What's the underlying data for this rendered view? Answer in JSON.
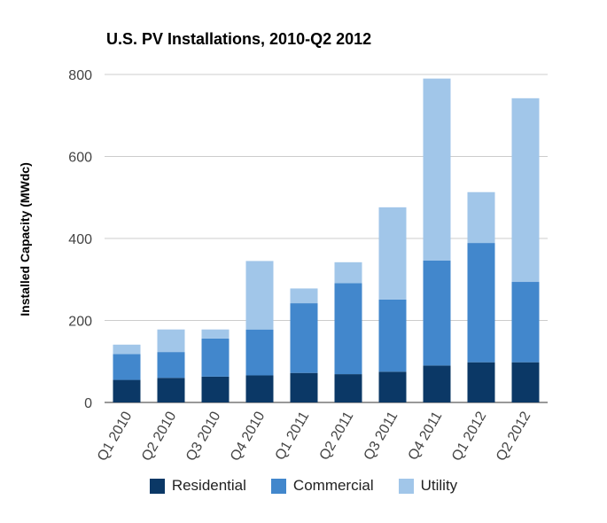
{
  "chart_data": {
    "type": "bar",
    "stacked": true,
    "title": "U.S. PV Installations, 2010-Q2 2012",
    "ylabel": "Installed Capacity (MWdc)",
    "xlabel": "",
    "ylim": [
      0,
      800
    ],
    "yticks": [
      0,
      200,
      400,
      600,
      800
    ],
    "grid": true,
    "legend_position": "bottom",
    "categories": [
      "Q1 2010",
      "Q2 2010",
      "Q3 2010",
      "Q4 2010",
      "Q1 2011",
      "Q2 2011",
      "Q3 2011",
      "Q4 2011",
      "Q1 2012",
      "Q2 2012"
    ],
    "series": [
      {
        "name": "Residential",
        "color": "#0b3866",
        "values": [
          55,
          60,
          63,
          66,
          72,
          69,
          75,
          90,
          98,
          98
        ]
      },
      {
        "name": "Commercial",
        "color": "#4287cc",
        "values": [
          63,
          63,
          93,
          112,
          170,
          222,
          176,
          256,
          291,
          196
        ]
      },
      {
        "name": "Utility",
        "color": "#a1c6e9",
        "values": [
          23,
          55,
          22,
          167,
          36,
          51,
          225,
          444,
          124,
          448
        ]
      }
    ]
  }
}
